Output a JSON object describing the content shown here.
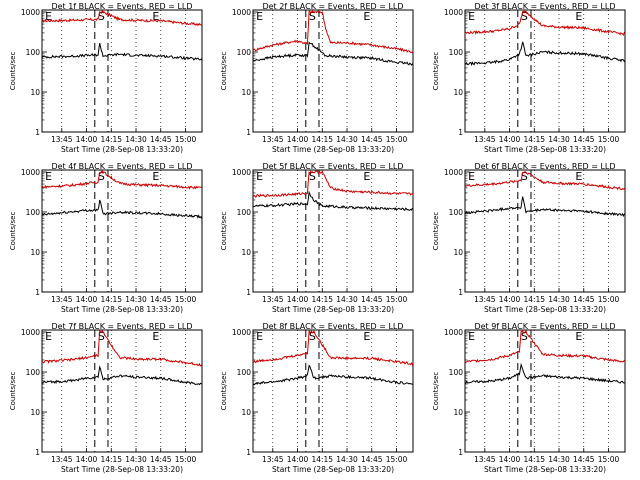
{
  "chart_data": [
    {
      "type": "line",
      "title": "Det 1f BLACK = Events, RED = LLD",
      "xlabel": "Start Time (28-Sep-08 13:33:20)",
      "ylabel": "Counts/sec",
      "yscale": "log",
      "ylim": [
        1,
        1000
      ],
      "yticks": [
        "1",
        "10",
        "100",
        "1000"
      ],
      "xticks": [
        "13:45",
        "14:00",
        "14:15",
        "14:30",
        "14:45",
        "15:00"
      ],
      "xlim": [
        "13:33",
        "15:10"
      ],
      "grid": "dotted vertical",
      "markers": [
        "E",
        "S",
        "E"
      ],
      "series": [
        {
          "name": "LLD",
          "color": "#cc0000",
          "x": [
            "13:33",
            "13:50",
            "14:00",
            "14:07",
            "14:08",
            "14:10",
            "14:20",
            "14:30",
            "14:45",
            "15:00",
            "15:10"
          ],
          "y": [
            600,
            620,
            640,
            650,
            1000,
            1000,
            650,
            620,
            600,
            520,
            480
          ]
        },
        {
          "name": "Events",
          "color": "#000000",
          "x": [
            "13:33",
            "13:50",
            "14:00",
            "14:07",
            "14:08",
            "14:10",
            "14:20",
            "14:30",
            "14:45",
            "15:00",
            "15:10"
          ],
          "y": [
            75,
            78,
            82,
            85,
            160,
            80,
            88,
            82,
            80,
            70,
            65
          ]
        }
      ]
    },
    {
      "type": "line",
      "title": "Det 2f BLACK = Events, RED = LLD",
      "xlabel": "Start Time (28-Sep-08 13:33:20)",
      "ylabel": "Counts/sec",
      "yscale": "log",
      "ylim": [
        1,
        1000
      ],
      "yticks": [
        "1",
        "10",
        "100",
        "1000"
      ],
      "xticks": [
        "13:45",
        "14:00",
        "14:15",
        "14:30",
        "14:45",
        "15:00"
      ],
      "xlim": [
        "13:33",
        "15:10"
      ],
      "grid": "dotted vertical",
      "markers": [
        "E",
        "S",
        "E"
      ],
      "series": [
        {
          "name": "LLD",
          "color": "#cc0000",
          "x": [
            "13:33",
            "13:45",
            "14:00",
            "14:06",
            "14:07",
            "14:10",
            "14:15",
            "14:17",
            "14:20",
            "14:30",
            "14:45",
            "15:00",
            "15:10"
          ],
          "y": [
            110,
            150,
            190,
            160,
            1000,
            1000,
            1000,
            400,
            170,
            170,
            150,
            120,
            100
          ]
        },
        {
          "name": "Events",
          "color": "#000000",
          "x": [
            "13:33",
            "13:45",
            "14:00",
            "14:06",
            "14:07",
            "14:10",
            "14:15",
            "14:17",
            "14:20",
            "14:30",
            "14:45",
            "15:00",
            "15:10"
          ],
          "y": [
            60,
            75,
            85,
            80,
            180,
            140,
            95,
            80,
            80,
            75,
            70,
            55,
            50
          ]
        }
      ]
    },
    {
      "type": "line",
      "title": "Det 3f BLACK = Events, RED = LLD",
      "xlabel": "Start Time (28-Sep-08 13:33:20)",
      "ylabel": "Counts/sec",
      "yscale": "log",
      "ylim": [
        1,
        1000
      ],
      "yticks": [
        "1",
        "10",
        "100",
        "1000"
      ],
      "xticks": [
        "13:45",
        "14:00",
        "14:15",
        "14:30",
        "14:45",
        "15:00"
      ],
      "xlim": [
        "13:33",
        "15:10"
      ],
      "grid": "dotted vertical",
      "markers": [
        "E",
        "S",
        "E"
      ],
      "series": [
        {
          "name": "LLD",
          "color": "#cc0000",
          "x": [
            "13:33",
            "13:50",
            "14:00",
            "14:06",
            "14:08",
            "14:10",
            "14:20",
            "14:30",
            "14:45",
            "15:00",
            "15:10"
          ],
          "y": [
            300,
            330,
            380,
            500,
            1000,
            1000,
            450,
            420,
            400,
            320,
            280
          ]
        },
        {
          "name": "Events",
          "color": "#000000",
          "x": [
            "13:33",
            "13:50",
            "14:00",
            "14:06",
            "14:08",
            "14:10",
            "14:20",
            "14:30",
            "14:45",
            "15:00",
            "15:10"
          ],
          "y": [
            50,
            55,
            65,
            90,
            170,
            80,
            100,
            95,
            90,
            70,
            60
          ]
        }
      ]
    },
    {
      "type": "line",
      "title": "Det 4f BLACK = Events, RED = LLD",
      "xlabel": "Start Time (28-Sep-08 13:33:20)",
      "ylabel": "Counts/sec",
      "yscale": "log",
      "ylim": [
        1,
        1000
      ],
      "yticks": [
        "1",
        "10",
        "100",
        "1000"
      ],
      "xticks": [
        "13:45",
        "14:00",
        "14:15",
        "14:30",
        "14:45",
        "15:00"
      ],
      "xlim": [
        "13:33",
        "15:10"
      ],
      "grid": "dotted vertical",
      "markers": [
        "E",
        "S",
        "E"
      ],
      "series": [
        {
          "name": "LLD",
          "color": "#cc0000",
          "x": [
            "13:33",
            "13:50",
            "14:00",
            "14:07",
            "14:08",
            "14:10",
            "14:20",
            "14:30",
            "14:45",
            "15:00",
            "15:10"
          ],
          "y": [
            420,
            460,
            520,
            560,
            1000,
            1000,
            520,
            480,
            460,
            420,
            400
          ]
        },
        {
          "name": "Events",
          "color": "#000000",
          "x": [
            "13:33",
            "13:50",
            "14:00",
            "14:07",
            "14:08",
            "14:10",
            "14:20",
            "14:30",
            "14:45",
            "15:00",
            "15:10"
          ],
          "y": [
            85,
            100,
            110,
            110,
            200,
            90,
            100,
            95,
            90,
            80,
            75
          ]
        }
      ]
    },
    {
      "type": "line",
      "title": "Det 5f BLACK = Events, RED = LLD",
      "xlabel": "Start Time (28-Sep-08 13:33:20)",
      "ylabel": "Counts/sec",
      "yscale": "log",
      "ylim": [
        1,
        1000
      ],
      "yticks": [
        "1",
        "10",
        "100",
        "1000"
      ],
      "xticks": [
        "13:45",
        "14:00",
        "14:15",
        "14:30",
        "14:45",
        "15:00"
      ],
      "xlim": [
        "13:33",
        "15:10"
      ],
      "grid": "dotted vertical",
      "markers": [
        "E",
        "S",
        "E"
      ],
      "series": [
        {
          "name": "LLD",
          "color": "#cc0000",
          "x": [
            "13:33",
            "13:45",
            "14:00",
            "14:06",
            "14:07",
            "14:10",
            "14:15",
            "14:20",
            "14:30",
            "14:45",
            "15:00",
            "15:10"
          ],
          "y": [
            250,
            260,
            280,
            300,
            1000,
            1000,
            1000,
            400,
            330,
            310,
            290,
            280
          ]
        },
        {
          "name": "Events",
          "color": "#000000",
          "x": [
            "13:33",
            "13:45",
            "14:00",
            "14:06",
            "14:07",
            "14:10",
            "14:15",
            "14:20",
            "14:30",
            "14:45",
            "15:00",
            "15:10"
          ],
          "y": [
            140,
            145,
            160,
            160,
            300,
            200,
            140,
            140,
            130,
            125,
            120,
            115
          ]
        }
      ]
    },
    {
      "type": "line",
      "title": "Det 6f BLACK = Events, RED = LLD",
      "xlabel": "Start Time (28-Sep-08 13:33:20)",
      "ylabel": "Counts/sec",
      "yscale": "log",
      "ylim": [
        1,
        1000
      ],
      "yticks": [
        "1",
        "10",
        "100",
        "1000"
      ],
      "xticks": [
        "13:45",
        "14:00",
        "14:15",
        "14:30",
        "14:45",
        "15:00"
      ],
      "xlim": [
        "13:33",
        "15:10"
      ],
      "grid": "dotted vertical",
      "markers": [
        "E",
        "S",
        "E"
      ],
      "series": [
        {
          "name": "LLD",
          "color": "#cc0000",
          "x": [
            "13:33",
            "13:50",
            "14:00",
            "14:07",
            "14:08",
            "14:10",
            "14:20",
            "14:30",
            "14:45",
            "15:00",
            "15:10"
          ],
          "y": [
            450,
            500,
            560,
            620,
            1000,
            1000,
            560,
            520,
            500,
            420,
            380
          ]
        },
        {
          "name": "Events",
          "color": "#000000",
          "x": [
            "13:33",
            "13:50",
            "14:00",
            "14:07",
            "14:08",
            "14:10",
            "14:20",
            "14:30",
            "14:45",
            "15:00",
            "15:10"
          ],
          "y": [
            95,
            110,
            125,
            130,
            240,
            100,
            115,
            110,
            105,
            90,
            85
          ]
        }
      ]
    },
    {
      "type": "line",
      "title": "Det 7f BLACK = Events, RED = LLD",
      "xlabel": "Start Time (28-Sep-08 13:33:20)",
      "ylabel": "Counts/sec",
      "yscale": "log",
      "ylim": [
        1,
        1000
      ],
      "yticks": [
        "1",
        "10",
        "100",
        "1000"
      ],
      "xticks": [
        "13:45",
        "14:00",
        "14:15",
        "14:30",
        "14:45",
        "15:00"
      ],
      "xlim": [
        "13:33",
        "15:10"
      ],
      "grid": "dotted vertical",
      "markers": [
        "E",
        "S",
        "E"
      ],
      "series": [
        {
          "name": "LLD",
          "color": "#cc0000",
          "x": [
            "13:33",
            "13:50",
            "14:00",
            "14:07",
            "14:08",
            "14:10",
            "14:20",
            "14:30",
            "14:45",
            "15:00",
            "15:10"
          ],
          "y": [
            180,
            200,
            230,
            260,
            1000,
            1000,
            230,
            210,
            210,
            170,
            150
          ]
        },
        {
          "name": "Events",
          "color": "#000000",
          "x": [
            "13:33",
            "13:50",
            "14:00",
            "14:07",
            "14:08",
            "14:10",
            "14:20",
            "14:30",
            "14:45",
            "15:00",
            "15:10"
          ],
          "y": [
            55,
            60,
            70,
            75,
            140,
            65,
            80,
            75,
            70,
            55,
            50
          ]
        }
      ]
    },
    {
      "type": "line",
      "title": "Det 8f BLACK = Events, RED = LLD",
      "xlabel": "Start Time (28-Sep-08 13:33:20)",
      "ylabel": "Counts/sec",
      "yscale": "log",
      "ylim": [
        1,
        1000
      ],
      "yticks": [
        "1",
        "10",
        "100",
        "1000"
      ],
      "xticks": [
        "13:45",
        "14:00",
        "14:15",
        "14:30",
        "14:45",
        "15:00"
      ],
      "xlim": [
        "13:33",
        "15:10"
      ],
      "grid": "dotted vertical",
      "markers": [
        "E",
        "S",
        "E"
      ],
      "series": [
        {
          "name": "LLD",
          "color": "#cc0000",
          "x": [
            "13:33",
            "13:50",
            "14:00",
            "14:06",
            "14:07",
            "14:10",
            "14:20",
            "14:30",
            "14:45",
            "15:00",
            "15:10"
          ],
          "y": [
            180,
            220,
            260,
            300,
            1000,
            1000,
            230,
            220,
            220,
            180,
            160
          ]
        },
        {
          "name": "Events",
          "color": "#000000",
          "x": [
            "13:33",
            "13:50",
            "14:00",
            "14:06",
            "14:07",
            "14:10",
            "14:20",
            "14:30",
            "14:45",
            "15:00",
            "15:10"
          ],
          "y": [
            50,
            60,
            70,
            80,
            150,
            70,
            80,
            75,
            70,
            55,
            50
          ]
        }
      ]
    },
    {
      "type": "line",
      "title": "Det 9f BLACK = Events, RED = LLD",
      "xlabel": "Start Time (28-Sep-08 13:33:20)",
      "ylabel": "Counts/sec",
      "yscale": "log",
      "ylim": [
        1,
        1000
      ],
      "yticks": [
        "1",
        "10",
        "100",
        "1000"
      ],
      "xticks": [
        "13:45",
        "14:00",
        "14:15",
        "14:30",
        "14:45",
        "15:00"
      ],
      "xlim": [
        "13:33",
        "15:10"
      ],
      "grid": "dotted vertical",
      "markers": [
        "E",
        "S",
        "E"
      ],
      "series": [
        {
          "name": "LLD",
          "color": "#cc0000",
          "x": [
            "13:33",
            "13:50",
            "14:00",
            "14:06",
            "14:07",
            "14:10",
            "14:20",
            "14:30",
            "14:45",
            "15:00",
            "15:10"
          ],
          "y": [
            180,
            210,
            260,
            320,
            1000,
            1000,
            280,
            260,
            250,
            200,
            180
          ]
        },
        {
          "name": "Events",
          "color": "#000000",
          "x": [
            "13:33",
            "13:50",
            "14:00",
            "14:06",
            "14:07",
            "14:10",
            "14:20",
            "14:30",
            "14:45",
            "15:00",
            "15:10"
          ],
          "y": [
            55,
            60,
            70,
            90,
            160,
            70,
            80,
            75,
            70,
            60,
            55
          ]
        }
      ]
    }
  ]
}
